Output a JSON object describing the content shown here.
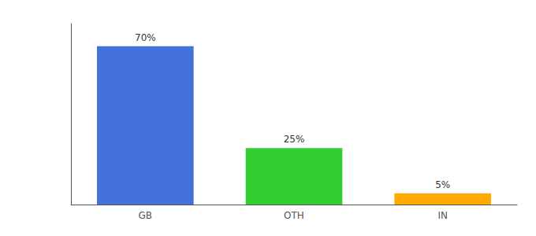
{
  "chart_data": {
    "type": "bar",
    "categories": [
      "GB",
      "OTH",
      "IN"
    ],
    "values": [
      70,
      25,
      5
    ],
    "value_labels": [
      "70%",
      "25%",
      "5%"
    ],
    "colors": [
      "#4472db",
      "#33cc33",
      "#ffaa00"
    ],
    "ylim": [
      0,
      80
    ],
    "data_labels": true,
    "tick_labels": "x",
    "grid": false
  }
}
